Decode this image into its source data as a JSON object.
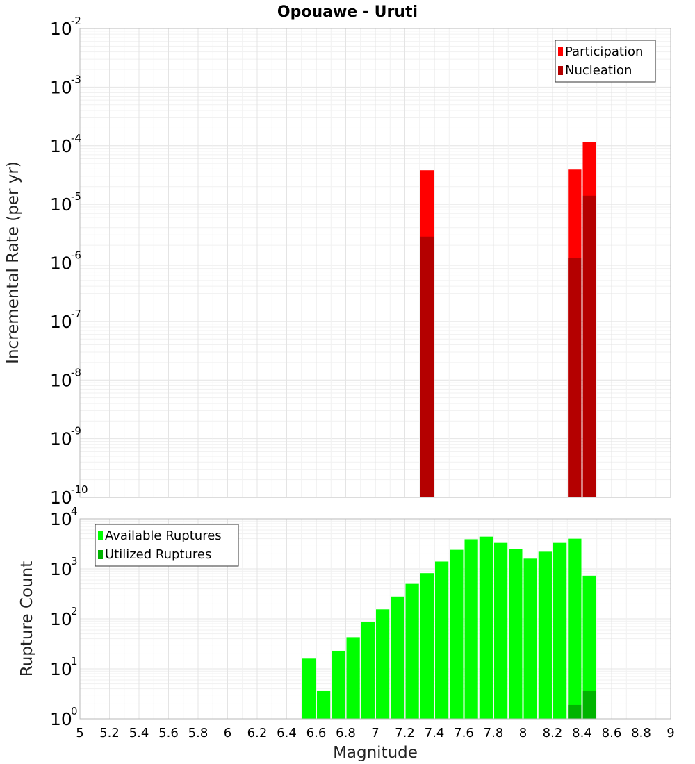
{
  "chart_data": [
    {
      "type": "bar",
      "title": "Opouawe - Uruti",
      "xlabel": "",
      "ylabel": "Incremental Rate (per yr)",
      "yscale": "log",
      "ylim_exponents": [
        -10,
        -2
      ],
      "xlim": [
        5,
        9
      ],
      "bin_width": 0.1,
      "grid": true,
      "legend_position": "top-right",
      "series": [
        {
          "name": "Participation",
          "color": "#ff0000",
          "points": [
            {
              "x": 7.35,
              "y": 3.8e-05
            },
            {
              "x": 8.35,
              "y": 3.9e-05
            },
            {
              "x": 8.45,
              "y": 0.000115
            }
          ]
        },
        {
          "name": "Nucleation",
          "color": "#b40000",
          "points": [
            {
              "x": 7.35,
              "y": 2.8e-06
            },
            {
              "x": 8.35,
              "y": 1.2e-06
            },
            {
              "x": 8.45,
              "y": 1.4e-05
            }
          ]
        }
      ]
    },
    {
      "type": "bar",
      "title": "",
      "xlabel": "Magnitude",
      "ylabel": "Rupture Count",
      "yscale": "log",
      "ylim_exponents": [
        0,
        4
      ],
      "xlim": [
        5,
        9
      ],
      "bin_width": 0.1,
      "grid": true,
      "legend_position": "top-left",
      "xticks": [
        "5",
        "5.2",
        "5.4",
        "5.6",
        "5.8",
        "6",
        "6.2",
        "6.4",
        "6.6",
        "6.8",
        "7",
        "7.2",
        "7.4",
        "7.6",
        "7.8",
        "8",
        "8.2",
        "8.4",
        "8.6",
        "8.8",
        "9"
      ],
      "series": [
        {
          "name": "Available Ruptures",
          "color": "#00ff00",
          "points": [
            {
              "x": 6.55,
              "y": 16
            },
            {
              "x": 6.65,
              "y": 3.6
            },
            {
              "x": 6.75,
              "y": 23
            },
            {
              "x": 6.85,
              "y": 43
            },
            {
              "x": 6.95,
              "y": 88
            },
            {
              "x": 7.05,
              "y": 155
            },
            {
              "x": 7.15,
              "y": 280
            },
            {
              "x": 7.25,
              "y": 500
            },
            {
              "x": 7.35,
              "y": 820
            },
            {
              "x": 7.45,
              "y": 1400
            },
            {
              "x": 7.55,
              "y": 2400
            },
            {
              "x": 7.65,
              "y": 3900
            },
            {
              "x": 7.75,
              "y": 4400
            },
            {
              "x": 7.85,
              "y": 3300
            },
            {
              "x": 7.95,
              "y": 2500
            },
            {
              "x": 8.05,
              "y": 1600
            },
            {
              "x": 8.15,
              "y": 2200
            },
            {
              "x": 8.25,
              "y": 3300
            },
            {
              "x": 8.35,
              "y": 4000
            },
            {
              "x": 8.45,
              "y": 730
            }
          ]
        },
        {
          "name": "Utilized Ruptures",
          "color": "#00b400",
          "points": [
            {
              "x": 7.35,
              "y": 1
            },
            {
              "x": 8.15,
              "y": 1
            },
            {
              "x": 8.35,
              "y": 1.9
            },
            {
              "x": 8.45,
              "y": 3.6
            }
          ]
        }
      ]
    }
  ]
}
